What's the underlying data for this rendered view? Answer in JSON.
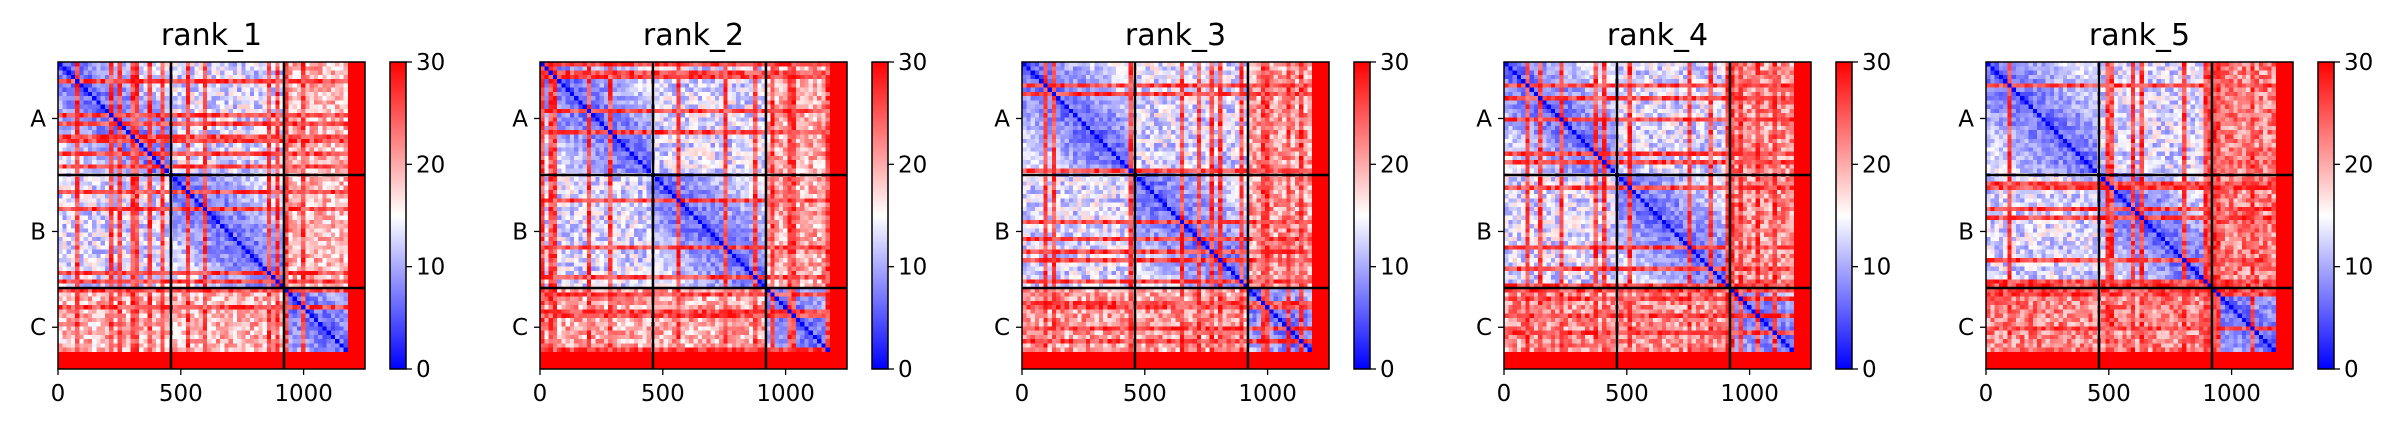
{
  "chart_data": {
    "type": "heatmap",
    "description_free": true,
    "panels": [
      {
        "title": "rank_1",
        "cmap_max": 30
      },
      {
        "title": "rank_2",
        "cmap_max": 30
      },
      {
        "title": "rank_3",
        "cmap_max": 30
      },
      {
        "title": "rank_4",
        "cmap_max": 30
      },
      {
        "title": "rank_5",
        "cmap_max": 30
      }
    ],
    "x_range": [
      0,
      1250
    ],
    "x_ticks": [
      0,
      500,
      1000
    ],
    "chain_boundaries": [
      460,
      920
    ],
    "chain_labels": [
      "A",
      "B",
      "C"
    ],
    "chain_label_positions": [
      230,
      690,
      1080
    ],
    "colorbar": {
      "range": [
        0,
        30
      ],
      "ticks": [
        0,
        10,
        20,
        30
      ],
      "colors": [
        "#0000ff",
        "#ffffff",
        "#ff0000"
      ]
    },
    "grid": false
  }
}
